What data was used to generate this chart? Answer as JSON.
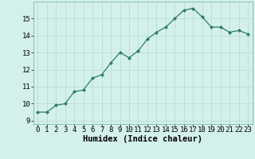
{
  "x": [
    0,
    1,
    2,
    3,
    4,
    5,
    6,
    7,
    8,
    9,
    10,
    11,
    12,
    13,
    14,
    15,
    16,
    17,
    18,
    19,
    20,
    21,
    22,
    23
  ],
  "y": [
    9.5,
    9.5,
    9.9,
    10.0,
    10.7,
    10.8,
    11.5,
    11.7,
    12.4,
    13.0,
    12.7,
    13.1,
    13.8,
    14.2,
    14.5,
    15.0,
    15.5,
    15.6,
    15.1,
    14.5,
    14.5,
    14.2,
    14.3,
    14.1
  ],
  "line_color": "#2e7b6e",
  "marker": "D",
  "marker_size": 2.0,
  "bg_color": "#d4f0eb",
  "grid_color": "#b8ddd8",
  "xlabel": "Humidex (Indice chaleur)",
  "xlabel_fontsize": 7.5,
  "tick_fontsize": 6.5,
  "ylim": [
    8.8,
    16.0
  ],
  "xlim": [
    -0.5,
    23.5
  ],
  "yticks": [
    9,
    10,
    11,
    12,
    13,
    14,
    15
  ],
  "xtick_labels": [
    "0",
    "1",
    "2",
    "3",
    "4",
    "5",
    "6",
    "7",
    "8",
    "9",
    "10",
    "11",
    "12",
    "13",
    "14",
    "15",
    "16",
    "17",
    "18",
    "19",
    "20",
    "21",
    "22",
    "23"
  ]
}
